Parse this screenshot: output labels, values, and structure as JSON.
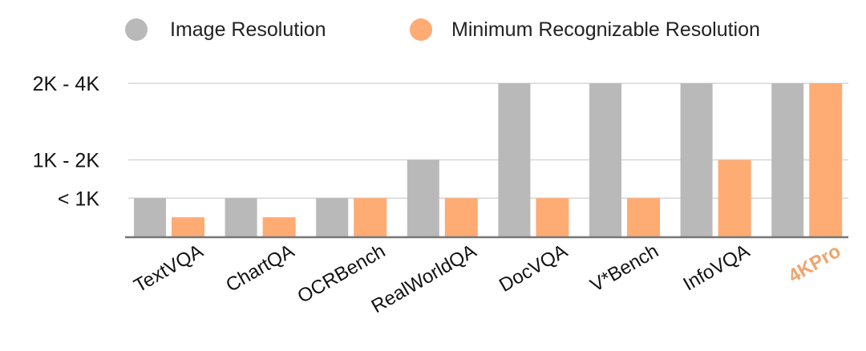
{
  "chart_data": {
    "type": "bar",
    "title": "",
    "xlabel": "",
    "ylabel": "",
    "categories": [
      "TextVQA",
      "ChartQA",
      "OCRBench",
      "RealWorldQA",
      "DocVQA",
      "V*Bench",
      "InfoVQA",
      "4KPro"
    ],
    "highlight_category": "4KPro",
    "y_ticks": [
      {
        "label": "< 1K",
        "value": 1
      },
      {
        "label": "1K - 2K",
        "value": 2
      },
      {
        "label": "2K - 4K",
        "value": 4
      }
    ],
    "ylim": [
      0,
      4
    ],
    "grid": true,
    "legend_position": "top",
    "series": [
      {
        "name": "Image Resolution",
        "color": "#b9b9b9",
        "values": [
          1,
          1,
          1,
          2,
          4,
          4,
          4,
          4
        ]
      },
      {
        "name": "Minimum Recognizable Resolution",
        "color": "#ffab74",
        "values": [
          0.5,
          0.5,
          1,
          1,
          1,
          1,
          2,
          4
        ]
      }
    ],
    "highlight_color": "#f0a46c"
  }
}
